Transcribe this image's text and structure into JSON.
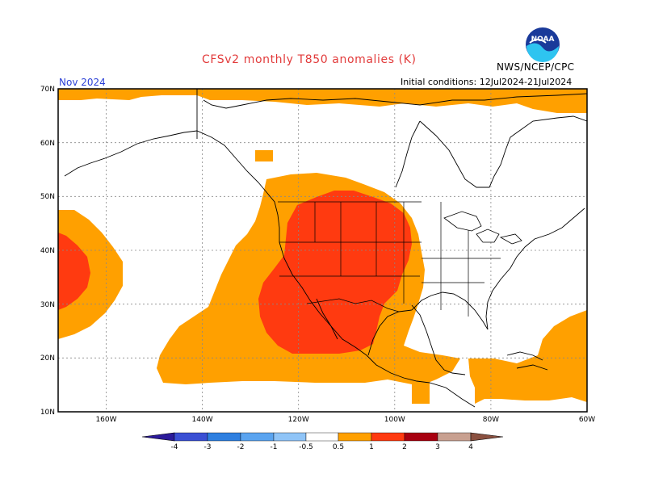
{
  "header": {
    "title": "CFSv2 monthly T850 anomalies (K)",
    "month": "Nov 2024",
    "agency": "NWS/NCEP/CPC",
    "initial_conditions": "Initial conditions: 12Jul2024-21Jul2024",
    "logo_text": "NOAA"
  },
  "map": {
    "lon_range": [
      -170,
      -60
    ],
    "lat_range": [
      10,
      70
    ],
    "lat_labels": [
      "70N",
      "60N",
      "50N",
      "40N",
      "30N",
      "20N",
      "10N"
    ],
    "lon_labels": [
      "160W",
      "140W",
      "120W",
      "100W",
      "80W",
      "60W"
    ],
    "grid": "dotted"
  },
  "colorbar": {
    "labels": [
      "-4",
      "-3",
      "-2",
      "-1",
      "-0.5",
      "0.5",
      "1",
      "2",
      "3",
      "4"
    ],
    "colors": [
      "#2b1a9a",
      "#3a4fd4",
      "#2e7fe0",
      "#5aa4f0",
      "#8fc4f7",
      "#ffffff",
      "#ffa000",
      "#ff3a10",
      "#a80010",
      "#c8a090",
      "#8a5040"
    ]
  }
}
